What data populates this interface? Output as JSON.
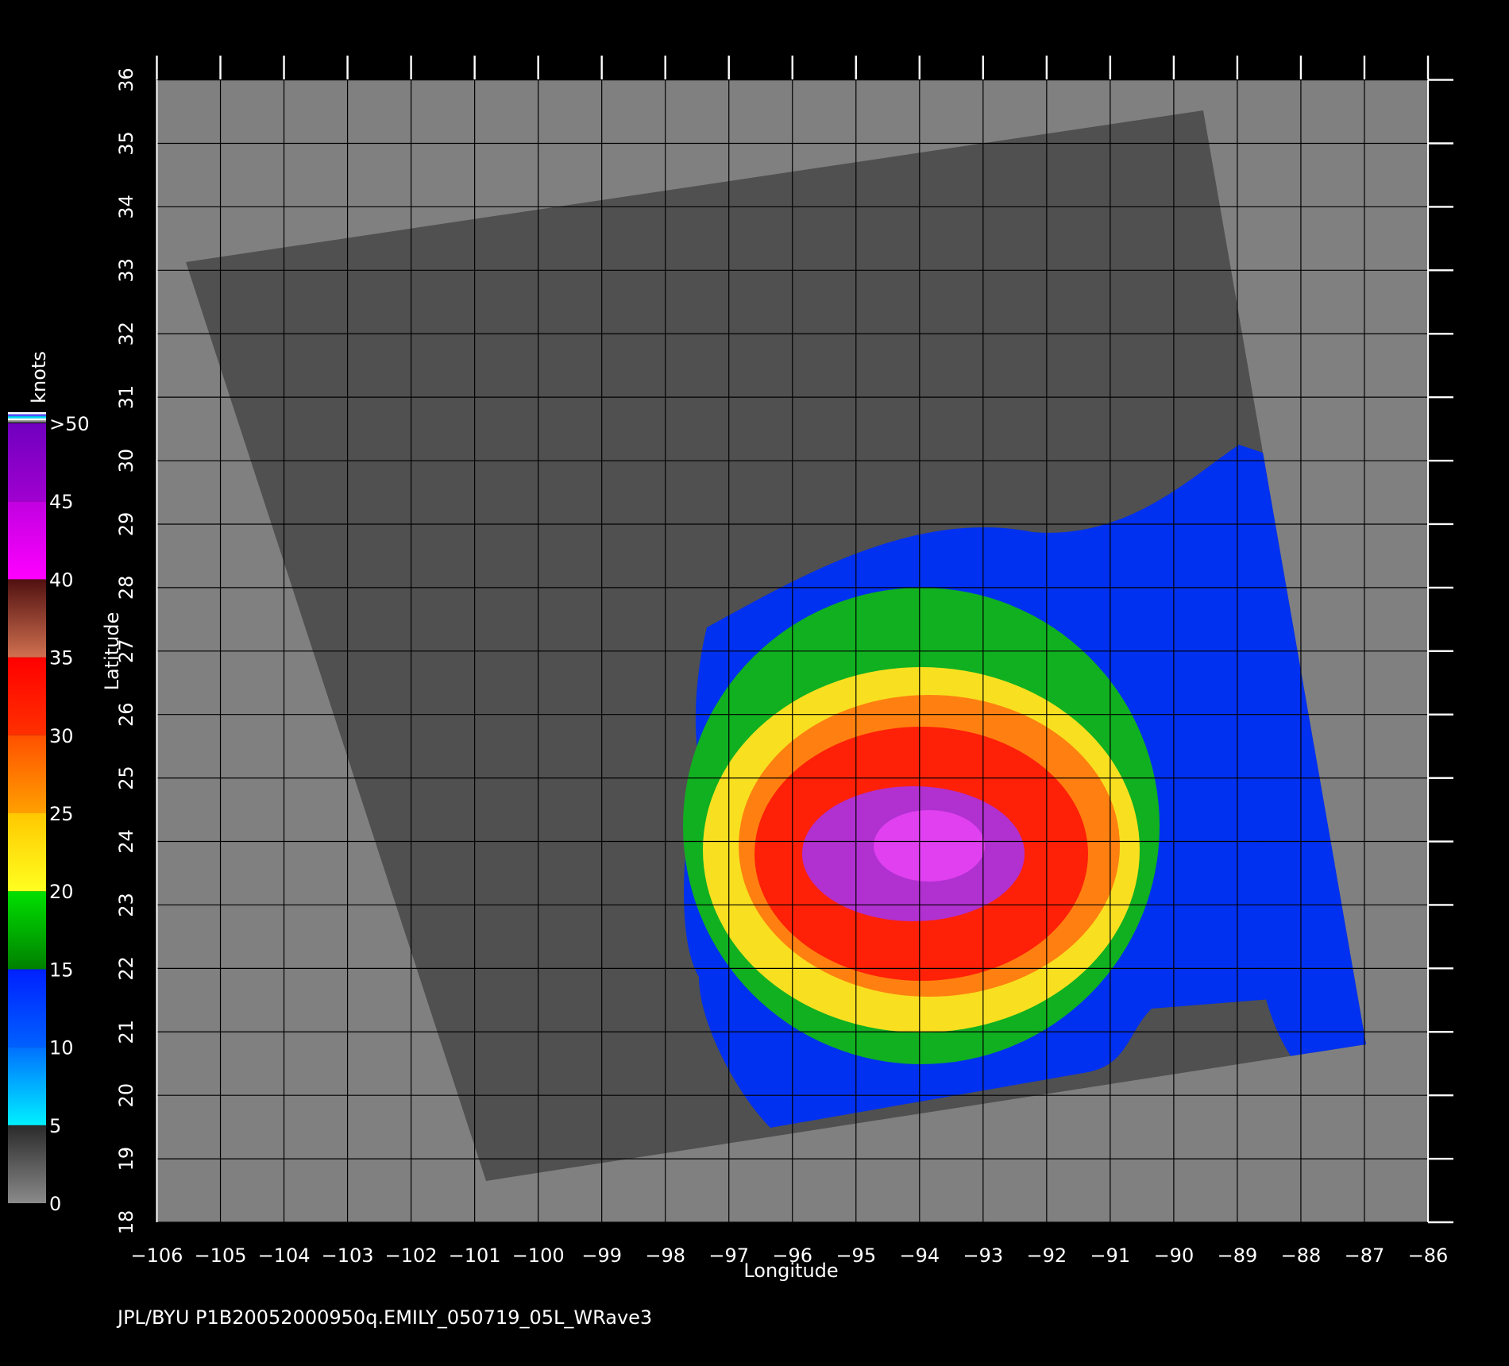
{
  "map": {
    "xlabel": "Longitude",
    "ylabel": "Latitude",
    "xlim": [
      -106,
      -86
    ],
    "ylim": [
      18,
      36
    ],
    "xticks": [
      {
        "value": -106,
        "label": "−106"
      },
      {
        "value": -105,
        "label": "−105"
      },
      {
        "value": -104,
        "label": "−104"
      },
      {
        "value": -103,
        "label": "−103"
      },
      {
        "value": -102,
        "label": "−102"
      },
      {
        "value": -101,
        "label": "−101"
      },
      {
        "value": -100,
        "label": "−100"
      },
      {
        "value": -99,
        "label": "−99"
      },
      {
        "value": -98,
        "label": "−98"
      },
      {
        "value": -97,
        "label": "−97"
      },
      {
        "value": -96,
        "label": "−96"
      },
      {
        "value": -95,
        "label": "−95"
      },
      {
        "value": -94,
        "label": "−94"
      },
      {
        "value": -93,
        "label": "−93"
      },
      {
        "value": -92,
        "label": "−92"
      },
      {
        "value": -91,
        "label": "−91"
      },
      {
        "value": -90,
        "label": "−90"
      },
      {
        "value": -89,
        "label": "−89"
      },
      {
        "value": -88,
        "label": "−88"
      },
      {
        "value": -87,
        "label": "−87"
      },
      {
        "value": -86,
        "label": "−86"
      }
    ],
    "yticks": [
      18,
      19,
      20,
      21,
      22,
      23,
      24,
      25,
      26,
      27,
      28,
      29,
      30,
      31,
      32,
      33,
      34,
      35,
      36
    ],
    "grid": true
  },
  "colorbar": {
    "title": "knots",
    "lim": [
      0,
      50
    ],
    "ticks": [
      0,
      5,
      10,
      15,
      20,
      25,
      30,
      35,
      40,
      45,
      {
        "value": 50,
        "label": ">50"
      }
    ]
  },
  "footer": "JPL/BYU  P1B20052000950q.EMILY_050719_05L_WRave3"
}
